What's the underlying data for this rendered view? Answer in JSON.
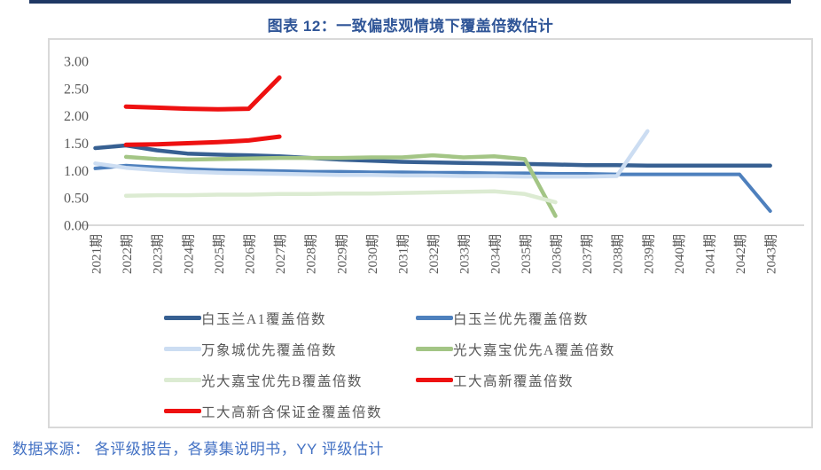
{
  "page": {
    "title": "图表 12：一致偏悲观情境下覆盖倍数估计",
    "source": "数据来源： 各评级报告，各募集说明书，YY 评级估计",
    "title_color": "#2F5597",
    "source_color": "#4472C4",
    "accent_bar_color": "#1F3864",
    "border_color": "#D9D9D9",
    "tick_color": "#595959"
  },
  "chart_data": {
    "type": "line",
    "title": "图表 12：一致偏悲观情境下覆盖倍数估计",
    "xlabel": "",
    "ylabel": "",
    "ylim": [
      0,
      3
    ],
    "grid": false,
    "legend_position": "bottom",
    "y_ticks": [
      "0.00",
      "0.50",
      "1.00",
      "1.50",
      "2.00",
      "2.50",
      "3.00"
    ],
    "categories": [
      "2021期",
      "2022期",
      "2023期",
      "2024期",
      "2025期",
      "2026期",
      "2027期",
      "2028期",
      "2029期",
      "2030期",
      "2031期",
      "2032期",
      "2033期",
      "2034期",
      "2035期",
      "2036期",
      "2037期",
      "2038期",
      "2039期",
      "2040期",
      "2041期",
      "2042期",
      "2043期"
    ],
    "series": [
      {
        "name": "白玉兰A1覆盖倍数",
        "color": "#376092",
        "width": 4.5,
        "values": [
          1.41,
          1.46,
          1.37,
          1.31,
          1.29,
          1.28,
          1.26,
          1.23,
          1.2,
          1.18,
          1.16,
          1.15,
          1.14,
          1.13,
          1.12,
          1.11,
          1.1,
          1.1,
          1.09,
          1.09,
          1.09,
          1.09,
          1.09
        ]
      },
      {
        "name": "白玉兰优先覆盖倍数",
        "color": "#4E80BD",
        "width": 4,
        "values": [
          1.04,
          1.09,
          1.06,
          1.03,
          1.01,
          1.0,
          0.99,
          0.98,
          0.98,
          0.97,
          0.97,
          0.96,
          0.96,
          0.95,
          0.95,
          0.94,
          0.94,
          0.93,
          0.93,
          0.93,
          0.93,
          0.93,
          0.26
        ]
      },
      {
        "name": "万象城优先覆盖倍数",
        "color": "#CCDDF2",
        "width": 4.5,
        "values": [
          1.13,
          1.05,
          1.01,
          0.98,
          0.96,
          0.95,
          0.94,
          0.93,
          0.92,
          0.92,
          0.91,
          0.91,
          0.9,
          0.9,
          0.89,
          0.89,
          0.89,
          0.9,
          1.72,
          null,
          null,
          null,
          null
        ]
      },
      {
        "name": "光大嘉宝优先A覆盖倍数",
        "color": "#A3C585",
        "width": 4.5,
        "values": [
          null,
          1.25,
          1.21,
          1.2,
          1.21,
          1.22,
          1.23,
          1.23,
          1.23,
          1.24,
          1.24,
          1.28,
          1.24,
          1.26,
          1.21,
          0.17,
          null,
          null,
          null,
          null,
          null,
          null,
          null
        ]
      },
      {
        "name": "光大嘉宝优先B覆盖倍数",
        "color": "#DCEBD2",
        "width": 4.5,
        "values": [
          null,
          0.54,
          0.55,
          0.55,
          0.56,
          0.56,
          0.57,
          0.57,
          0.58,
          0.58,
          0.59,
          0.6,
          0.61,
          0.62,
          0.57,
          0.42,
          null,
          null,
          null,
          null,
          null,
          null,
          null
        ]
      },
      {
        "name": "工大高新覆盖倍数",
        "color": "#EE1111",
        "width": 5,
        "values": [
          null,
          1.47,
          1.48,
          1.5,
          1.52,
          1.55,
          1.62,
          null,
          null,
          null,
          null,
          null,
          null,
          null,
          null,
          null,
          null,
          null,
          null,
          null,
          null,
          null,
          null
        ]
      },
      {
        "name": "工大高新含保证金覆盖倍数",
        "color": "#EE1111",
        "width": 5,
        "values": [
          null,
          2.17,
          2.15,
          2.13,
          2.12,
          2.13,
          2.7,
          null,
          null,
          null,
          null,
          null,
          null,
          null,
          null,
          null,
          null,
          null,
          null,
          null,
          null,
          null,
          null
        ]
      }
    ]
  }
}
